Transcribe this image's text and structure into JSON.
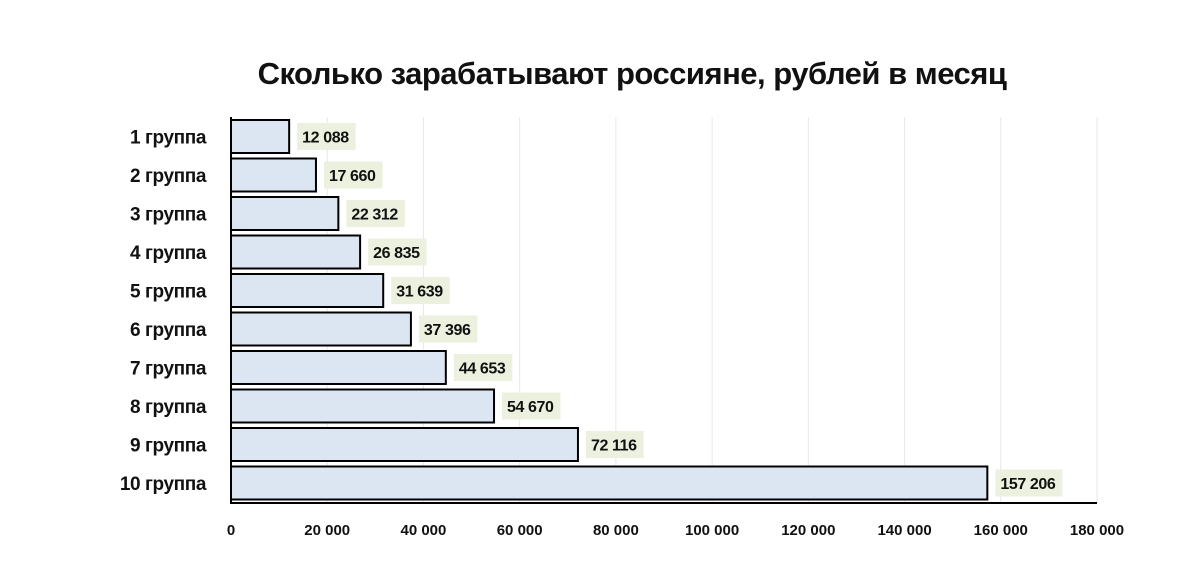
{
  "chart_data": {
    "type": "bar",
    "orientation": "horizontal",
    "title": "Сколько зарабатывают россияне, рублей в месяц",
    "xlabel": "",
    "ylabel": "",
    "categories": [
      "1 группа",
      "2 группа",
      "3 группа",
      "4 группа",
      "5 группа",
      "6 группа",
      "7 группа",
      "8 группа",
      "9 группа",
      "10 группа"
    ],
    "values": [
      12088,
      17660,
      22312,
      26835,
      31639,
      37396,
      44653,
      54670,
      72116,
      157206
    ],
    "value_labels": [
      "12 088",
      "17 660",
      "22 312",
      "26 835",
      "31 639",
      "37 396",
      "44 653",
      "54 670",
      "72 116",
      "157 206"
    ],
    "xlim": [
      0,
      180000
    ],
    "xticks": [
      0,
      20000,
      40000,
      60000,
      80000,
      100000,
      120000,
      140000,
      160000,
      180000
    ],
    "xtick_labels": [
      "0",
      "20 000",
      "40 000",
      "60 000",
      "80 000",
      "100 000",
      "120 000",
      "140 000",
      "160 000",
      "180 000"
    ],
    "grid": true,
    "colors": {
      "bar_fill": "#dce6f2",
      "bar_stroke": "#000000",
      "label_bg": "#ebf1de",
      "grid": "#e8e8e8",
      "text": "#111111"
    }
  }
}
